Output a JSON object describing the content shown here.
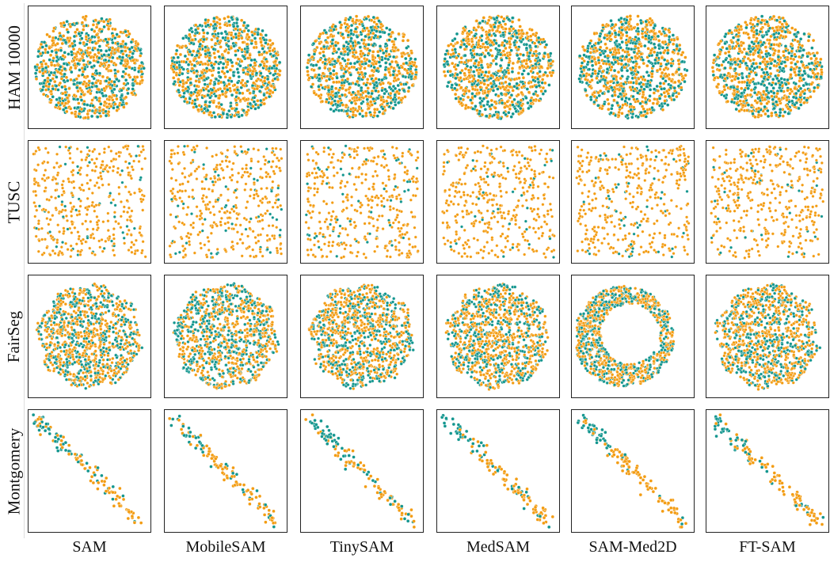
{
  "colors": {
    "group_a": "#f39c12",
    "group_b": "#13968f",
    "frame": "#222222"
  },
  "chart_data": {
    "type": "scatter",
    "description_of_layout": "grid of t-SNE embedding scatter plots; rows = datasets, columns = models",
    "rows": [
      "HAM 10000",
      "TUSC",
      "FairSeg",
      "Montgomery"
    ],
    "columns": [
      "SAM",
      "MobileSAM",
      "TinySAM",
      "MedSAM",
      "SAM-Med2D",
      "FT-SAM"
    ],
    "series_colors": [
      "#f39c12",
      "#13968f"
    ],
    "axes": "no ticks, no axis labels",
    "legend": "none",
    "grid": false
  }
}
